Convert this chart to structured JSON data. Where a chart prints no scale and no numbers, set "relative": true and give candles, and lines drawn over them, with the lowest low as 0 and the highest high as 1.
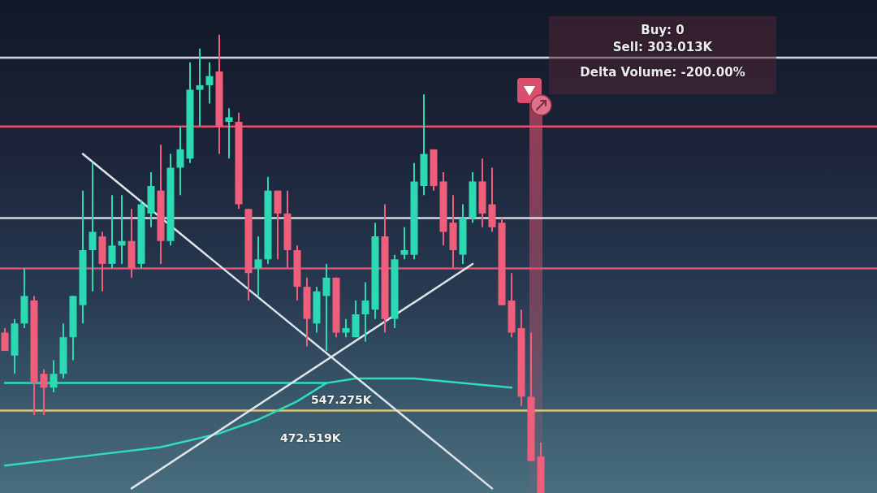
{
  "chart_data": {
    "type": "candlestick",
    "relative": true,
    "categories": [
      null,
      null,
      null,
      null,
      null,
      null,
      null,
      null,
      null,
      null,
      null,
      null,
      null,
      null,
      null,
      null,
      null,
      null,
      null,
      null,
      null,
      null,
      null,
      null,
      null,
      null,
      null,
      null,
      null,
      null,
      null,
      null,
      null,
      null,
      null,
      null,
      null,
      null,
      null,
      null,
      null,
      null,
      null,
      null,
      null,
      null,
      null,
      null,
      null,
      null,
      null,
      null,
      null,
      null,
      null,
      null,
      null,
      null,
      null,
      null,
      null,
      null,
      null,
      null,
      null,
      null,
      null,
      null,
      null,
      null,
      null,
      null,
      null,
      null,
      null,
      null,
      null,
      null,
      null,
      null,
      null,
      null,
      null,
      null,
      null,
      null,
      null,
      null,
      null,
      null
    ],
    "ohlc": [
      [
        0.35,
        0.36,
        0.31,
        0.31
      ],
      [
        0.3,
        0.38,
        0.26,
        0.37
      ],
      [
        0.37,
        0.49,
        0.36,
        0.43
      ],
      [
        0.42,
        0.43,
        0.17,
        0.24
      ],
      [
        0.26,
        0.27,
        0.17,
        0.23
      ],
      [
        0.23,
        0.29,
        0.22,
        0.26
      ],
      [
        0.26,
        0.37,
        0.25,
        0.34
      ],
      [
        0.34,
        0.43,
        0.29,
        0.43
      ],
      [
        0.41,
        0.66,
        0.37,
        0.53
      ],
      [
        0.53,
        0.72,
        0.44,
        0.57
      ],
      [
        0.56,
        0.57,
        0.44,
        0.5
      ],
      [
        0.5,
        0.65,
        0.49,
        0.54
      ],
      [
        0.54,
        0.65,
        0.5,
        0.55
      ],
      [
        0.55,
        0.62,
        0.47,
        0.49
      ],
      [
        0.5,
        0.64,
        0.49,
        0.63
      ],
      [
        0.61,
        0.7,
        0.58,
        0.67
      ],
      [
        0.66,
        0.76,
        0.5,
        0.55
      ],
      [
        0.55,
        0.74,
        0.54,
        0.71
      ],
      [
        0.71,
        0.8,
        0.65,
        0.75
      ],
      [
        0.73,
        0.94,
        0.72,
        0.88
      ],
      [
        0.88,
        0.97,
        0.8,
        0.89
      ],
      [
        0.89,
        0.94,
        0.85,
        0.91
      ],
      [
        0.92,
        1,
        0.74,
        0.8
      ],
      [
        0.81,
        0.84,
        0.73,
        0.82
      ],
      [
        0.81,
        0.83,
        0.62,
        0.63
      ],
      [
        0.62,
        0.62,
        0.42,
        0.48
      ],
      [
        0.49,
        0.56,
        0.43,
        0.51
      ],
      [
        0.51,
        0.69,
        0.5,
        0.66
      ],
      [
        0.66,
        0.66,
        0.51,
        0.61
      ],
      [
        0.61,
        0.66,
        0.49,
        0.53
      ],
      [
        0.53,
        0.54,
        0.42,
        0.45
      ],
      [
        0.45,
        0.47,
        0.32,
        0.38
      ],
      [
        0.37,
        0.45,
        0.35,
        0.44
      ],
      [
        0.43,
        0.5,
        0.31,
        0.47
      ],
      [
        0.47,
        0.47,
        0.34,
        0.35
      ],
      [
        0.35,
        0.38,
        0.34,
        0.36
      ],
      [
        0.34,
        0.42,
        0.34,
        0.39
      ],
      [
        0.39,
        0.46,
        0.33,
        0.42
      ],
      [
        0.4,
        0.59,
        0.38,
        0.56
      ],
      [
        0.56,
        0.63,
        0.35,
        0.38
      ],
      [
        0.38,
        0.52,
        0.36,
        0.51
      ],
      [
        0.52,
        0.58,
        0.51,
        0.53
      ],
      [
        0.52,
        0.72,
        0.51,
        0.68
      ],
      [
        0.67,
        0.87,
        0.65,
        0.74
      ],
      [
        0.75,
        0.75,
        0.66,
        0.67
      ],
      [
        0.68,
        0.7,
        0.54,
        0.57
      ],
      [
        0.59,
        0.65,
        0.49,
        0.53
      ],
      [
        0.52,
        0.63,
        0.5,
        0.6
      ],
      [
        0.6,
        0.7,
        0.59,
        0.68
      ],
      [
        0.68,
        0.73,
        0.58,
        0.61
      ],
      [
        0.63,
        0.71,
        0.57,
        0.58
      ],
      [
        0.59,
        0.6,
        0.41,
        0.41
      ],
      [
        0.42,
        0.48,
        0.34,
        0.35
      ],
      [
        0.36,
        0.4,
        0.19,
        0.21
      ],
      [
        0.21,
        0.35,
        0.07,
        0.07
      ],
      [
        0.08,
        0.11,
        0,
        0
      ],
      null,
      null,
      null,
      null,
      null,
      null,
      null,
      null,
      null,
      null,
      null,
      null,
      null,
      null,
      null,
      null,
      null,
      null,
      null,
      null,
      null,
      null,
      null,
      null,
      null,
      null,
      null,
      null,
      null,
      null,
      null,
      null,
      null,
      null
    ],
    "colors": [
      "#ef5f7c",
      "#2bd9b2",
      "#2bd9b2",
      "#ef5f7c",
      "#ef5f7c",
      "#2bd9b2",
      "#2bd9b2",
      "#2bd9b2",
      "#2bd9b2",
      "#2bd9b2",
      "#ef5f7c",
      "#2bd9b2",
      "#2bd9b2",
      "#ef5f7c",
      "#2bd9b2",
      "#2bd9b2",
      "#ef5f7c",
      "#2bd9b2",
      "#2bd9b2",
      "#2bd9b2",
      "#2bd9b2",
      "#2bd9b2",
      "#ef5f7c",
      "#2bd9b2",
      "#ef5f7c",
      "#ef5f7c",
      "#2bd9b2",
      "#2bd9b2",
      "#ef5f7c",
      "#ef5f7c",
      "#ef5f7c",
      "#ef5f7c",
      "#2bd9b2",
      "#2bd9b2",
      "#ef5f7c",
      "#2bd9b2",
      "#2bd9b2",
      "#2bd9b2",
      "#2bd9b2",
      "#ef5f7c",
      "#2bd9b2",
      "#2bd9b2",
      "#2bd9b2",
      "#2bd9b2",
      "#ef5f7c",
      "#ef5f7c",
      "#ef5f7c",
      "#2bd9b2",
      "#2bd9b2",
      "#ef5f7c",
      "#ef5f7c",
      "#ef5f7c",
      "#ef5f7c",
      "#ef5f7c",
      "#ef5f7c",
      "#ef5f7c",
      null,
      null,
      null,
      null,
      null,
      null,
      null,
      null,
      null,
      null,
      null,
      null,
      null,
      null,
      null,
      null,
      null,
      null,
      null,
      null,
      null,
      null,
      null,
      null,
      null,
      null,
      null,
      null,
      null,
      null,
      null,
      null,
      null,
      null
    ],
    "series": [
      {
        "type": "line",
        "color": "#dfe5e8",
        "values": [
          null,
          null,
          null,
          null,
          null,
          null,
          null,
          null,
          0.74,
          null,
          null,
          null,
          null,
          null,
          null,
          null,
          null,
          null,
          null,
          null,
          null,
          null,
          null,
          null,
          null,
          null,
          null,
          null,
          null,
          null,
          null,
          null,
          null,
          null,
          null,
          null,
          null,
          null,
          null,
          null,
          null,
          null,
          null,
          null,
          null,
          null,
          null,
          null,
          null,
          null,
          0.01,
          null,
          null,
          null,
          null,
          null,
          null,
          null,
          null,
          null,
          null,
          null,
          null,
          null,
          null,
          null,
          null,
          null,
          null,
          null,
          null,
          null,
          null,
          null,
          null,
          null,
          null,
          null,
          null,
          null,
          null,
          null,
          null,
          null,
          null,
          null,
          null,
          null,
          null,
          null
        ]
      },
      {
        "type": "line",
        "color": "#dfe5e8",
        "values": [
          null,
          null,
          null,
          null,
          null,
          null,
          null,
          null,
          null,
          null,
          null,
          null,
          null,
          0.01,
          null,
          null,
          null,
          null,
          null,
          null,
          null,
          null,
          null,
          null,
          null,
          null,
          null,
          null,
          null,
          null,
          null,
          null,
          null,
          null,
          null,
          null,
          null,
          null,
          null,
          null,
          null,
          null,
          null,
          null,
          null,
          null,
          null,
          null,
          0.5,
          null,
          null,
          null,
          null,
          null,
          null,
          null,
          null,
          null,
          null,
          null,
          null,
          null,
          null,
          null,
          null,
          null,
          null,
          null,
          null,
          null,
          null,
          null,
          null,
          null,
          null,
          null,
          null,
          null,
          null,
          null,
          null,
          null,
          null,
          null,
          null,
          null,
          null,
          null,
          null,
          null
        ]
      },
      {
        "type": "line",
        "color": "#2fdcbc",
        "values": [
          0.24,
          null,
          null,
          null,
          null,
          null,
          null,
          null,
          null,
          null,
          null,
          null,
          null,
          null,
          null,
          null,
          null,
          null,
          null,
          null,
          null,
          null,
          null,
          null,
          null,
          null,
          null,
          null,
          null,
          null,
          null,
          null,
          null,
          0.24,
          null,
          null,
          null,
          null,
          null,
          null,
          null,
          null,
          null,
          null,
          null,
          null,
          null,
          null,
          null,
          null,
          null,
          null,
          null,
          null,
          null,
          null,
          null,
          null,
          null,
          null,
          null,
          null,
          null,
          null,
          null,
          null,
          null,
          null,
          null,
          null,
          null,
          null,
          null,
          null,
          null,
          null,
          null,
          null,
          null,
          null,
          null,
          null,
          null,
          null,
          null,
          null,
          null,
          null,
          null,
          null
        ]
      },
      {
        "type": "line",
        "color": "#2fdcbc",
        "values": [
          0.06,
          null,
          null,
          null,
          null,
          null,
          null,
          null,
          0.08,
          null,
          null,
          null,
          null,
          null,
          null,
          null,
          0.1,
          null,
          null,
          null,
          null,
          null,
          0.13,
          null,
          null,
          null,
          0.16,
          null,
          null,
          null,
          0.2,
          null,
          null,
          0.24,
          null,
          null,
          0.25,
          null,
          null,
          null,
          null,
          null,
          0.25,
          null,
          null,
          null,
          null,
          null,
          null,
          null,
          null,
          null,
          0.23,
          null,
          null,
          null,
          null,
          null,
          null,
          null,
          null,
          null,
          null,
          null,
          null,
          null,
          null,
          null,
          null,
          null,
          null,
          null,
          null,
          null,
          null,
          null,
          null,
          null,
          null,
          null,
          null,
          null,
          null,
          null,
          null,
          null,
          null,
          null,
          null,
          null
        ]
      }
    ],
    "ref_lines": [
      {
        "axis": "y",
        "value": 0.95,
        "color": "#d4dadd"
      },
      {
        "axis": "y",
        "value": 0.8,
        "color": "#e94d6d"
      },
      {
        "axis": "y",
        "value": 0.6,
        "color": "#d4dadd"
      },
      {
        "axis": "y",
        "value": 0.49,
        "color": "#e94d6d"
      },
      {
        "axis": "y",
        "value": 0.18,
        "color": "#d8c47a"
      }
    ],
    "annotations": [
      "Buy: 0",
      "Sell: 303.013K",
      "Delta Volume: -200.00%",
      "472.519K",
      "547.275K"
    ]
  }
}
